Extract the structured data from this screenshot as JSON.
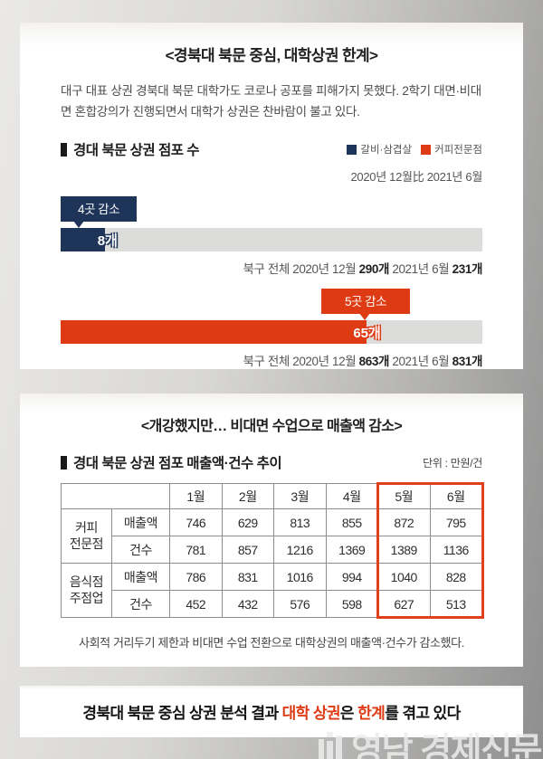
{
  "colors": {
    "navy": "#1e3459",
    "red": "#de3a14",
    "bar_track": "#dcdcdb",
    "highlight_border": "#e0401c",
    "footer_accent": "#de3a14"
  },
  "card1": {
    "title": "<경북대 북문 중심, 대학상권 한계>",
    "intro": "대구 대표 상권 경북대 북문 대학가도 코로나 공포를 피해가지 못했다. 2학기 대면·비대면 혼합강의가 진행되면서 대학가 상권은 찬바람이 불고 있다.",
    "section_title": "경대 북문 상권 점포 수",
    "legend": [
      {
        "label": "갈비·삼겹살",
        "color": "#1e3459"
      },
      {
        "label": "커피전문점",
        "color": "#de3a14"
      }
    ],
    "period_note": "2020년 12월比 2021년 6월",
    "bars": [
      {
        "badge": "4곳 감소",
        "value_label": "8개",
        "fill_pct": 10.5,
        "note_prefix": "북구 전체 2020년 12월",
        "note_val1": "290개",
        "note_mid": "2021년 6월",
        "note_val2": "231개"
      },
      {
        "badge": "5곳 감소",
        "value_label": "65개",
        "fill_pct": 72.5,
        "note_prefix": "북구 전체 2020년 12월",
        "note_val1": "863개",
        "note_mid": "2021년 6월",
        "note_val2": "831개"
      }
    ]
  },
  "card2": {
    "title": "<개강했지만… 비대면 수업으로 매출액 감소>",
    "section_title": "경대 북문 상권 점포 매출액·건수 추이",
    "unit_note": "단위 : 만원/건",
    "table": {
      "months": [
        "1월",
        "2월",
        "3월",
        "4월",
        "5월",
        "6월"
      ],
      "groups": [
        {
          "line1": "커피",
          "line2": "전문점"
        },
        {
          "line1": "음식점",
          "line2": "주점업"
        }
      ],
      "rows": [
        {
          "metric": "매출액",
          "values": [
            746,
            629,
            813,
            855,
            872,
            795
          ]
        },
        {
          "metric": "건수",
          "values": [
            781,
            857,
            1216,
            1369,
            1389,
            1136
          ]
        },
        {
          "metric": "매출액",
          "values": [
            786,
            831,
            1016,
            994,
            1040,
            828
          ]
        },
        {
          "metric": "건수",
          "values": [
            452,
            432,
            576,
            598,
            627,
            513
          ]
        }
      ]
    },
    "caption": "사회적 거리두기 제한과 비대면 수업 전환으로 대학상권의 매출액·건수가 감소했다."
  },
  "footer": {
    "part1": "경북대 북문 중심 상권 분석 결과 ",
    "accent1": "대학 상권",
    "part2": "은 ",
    "accent2": "한계",
    "part3": "를 겪고 있다"
  },
  "watermark": {
    "text": "영남 경제신문"
  },
  "chart_data": [
    {
      "type": "bar",
      "title": "경대 북문 상권 점포 수",
      "subtitle": "2020년 12월比 2021년 6월",
      "orientation": "horizontal",
      "legend_position": "top-right",
      "series": [
        {
          "name": "갈비·삼겹살",
          "value": 8,
          "unit": "개",
          "change_label": "4곳 감소",
          "district_total_2020_12": 290,
          "district_total_2021_06": 231,
          "color": "#1e3459"
        },
        {
          "name": "커피전문점",
          "value": 65,
          "unit": "개",
          "change_label": "5곳 감소",
          "district_total_2020_12": 863,
          "district_total_2021_06": 831,
          "color": "#de3a14"
        }
      ]
    },
    {
      "type": "table",
      "title": "경대 북문 상권 점포 매출액·건수 추이",
      "unit": "만원/건",
      "columns": [
        "1월",
        "2월",
        "3월",
        "4월",
        "5월",
        "6월"
      ],
      "highlighted_columns": [
        "5월",
        "6월"
      ],
      "rows": [
        {
          "group": "커피전문점",
          "metric": "매출액",
          "values": [
            746,
            629,
            813,
            855,
            872,
            795
          ]
        },
        {
          "group": "커피전문점",
          "metric": "건수",
          "values": [
            781,
            857,
            1216,
            1369,
            1389,
            1136
          ]
        },
        {
          "group": "음식점주점업",
          "metric": "매출액",
          "values": [
            786,
            831,
            1016,
            994,
            1040,
            828
          ]
        },
        {
          "group": "음식점주점업",
          "metric": "건수",
          "values": [
            452,
            432,
            576,
            598,
            627,
            513
          ]
        }
      ]
    }
  ]
}
